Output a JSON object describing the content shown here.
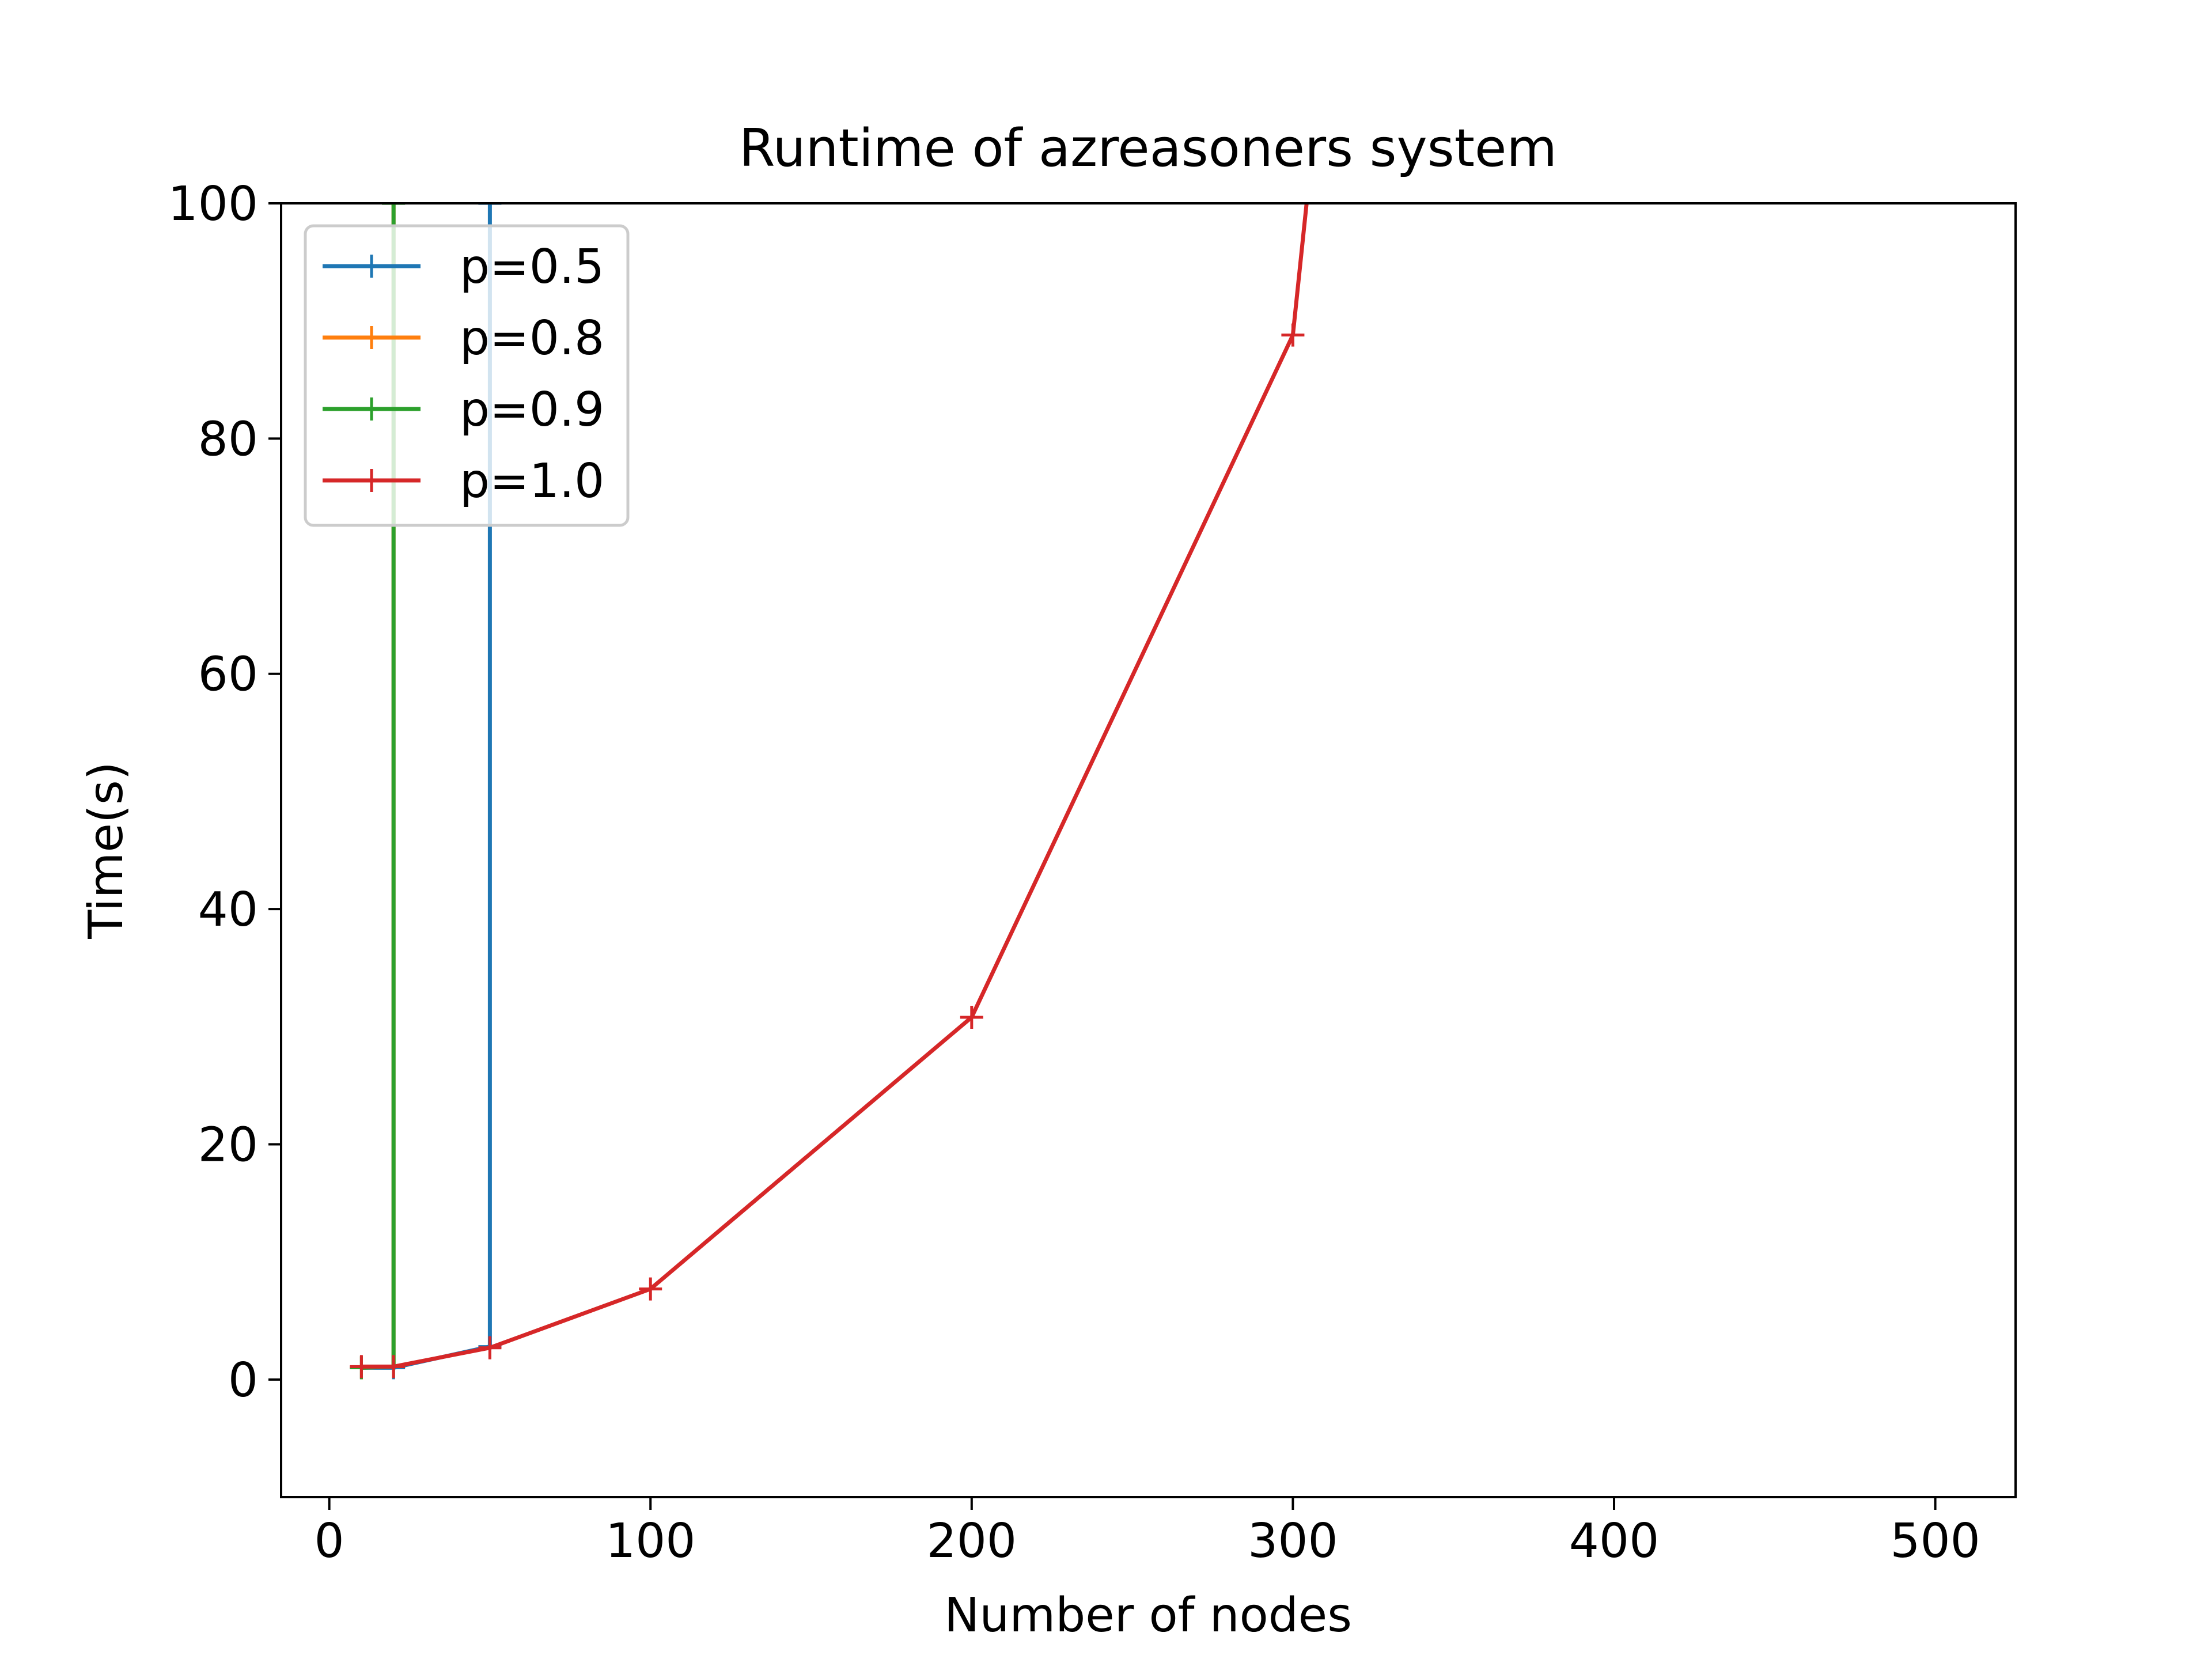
{
  "chart_data": {
    "type": "line",
    "title": "Runtime of azreasoners system",
    "xlabel": "Number of nodes",
    "ylabel": "Time(s)",
    "xlim": [
      -15,
      525
    ],
    "ylim": [
      -10,
      100
    ],
    "x_ticks": [
      0,
      100,
      200,
      300,
      400,
      500
    ],
    "y_ticks": [
      0,
      20,
      40,
      60,
      80,
      100
    ],
    "grid": false,
    "legend_position": "upper-left",
    "marker": "+",
    "series": [
      {
        "name": "p=0.5",
        "color": "#1f77b4",
        "x": [
          10,
          20,
          50,
          50
        ],
        "y": [
          1.0,
          1.0,
          2.8,
          100
        ]
      },
      {
        "name": "p=0.8",
        "color": "#ff7f0e",
        "x": [
          10,
          20,
          20
        ],
        "y": [
          1.0,
          1.1,
          100
        ]
      },
      {
        "name": "p=0.9",
        "color": "#2ca02c",
        "x": [
          10,
          20,
          20
        ],
        "y": [
          1.0,
          1.1,
          100
        ]
      },
      {
        "name": "p=1.0",
        "color": "#d62728",
        "x": [
          10,
          20,
          50,
          100,
          200,
          300,
          310
        ],
        "y": [
          1.1,
          1.1,
          2.7,
          7.7,
          30.8,
          88.8,
          115
        ]
      }
    ]
  }
}
